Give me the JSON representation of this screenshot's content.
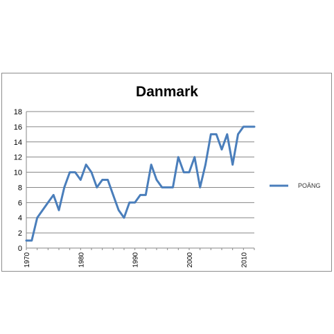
{
  "chart_data": {
    "type": "line",
    "title": "Danmark",
    "xlabel": "",
    "ylabel": "",
    "xlim": [
      1970,
      2012
    ],
    "ylim": [
      0,
      18
    ],
    "yticks": [
      0,
      2,
      4,
      6,
      8,
      10,
      12,
      14,
      16,
      18
    ],
    "xticks": [
      1970,
      1980,
      1990,
      2000,
      2010
    ],
    "grid": true,
    "legend_position": "right",
    "series": [
      {
        "name": "POÄNG",
        "color": "#4a7ebb",
        "x": [
          1970,
          1971,
          1972,
          1973,
          1974,
          1975,
          1976,
          1977,
          1978,
          1979,
          1980,
          1981,
          1982,
          1983,
          1984,
          1985,
          1986,
          1987,
          1988,
          1989,
          1990,
          1991,
          1992,
          1993,
          1994,
          1995,
          1996,
          1997,
          1998,
          1999,
          2000,
          2001,
          2002,
          2003,
          2004,
          2005,
          2006,
          2007,
          2008,
          2009,
          2010,
          2011,
          2012
        ],
        "y": [
          1,
          1,
          4,
          5,
          6,
          7,
          5,
          8,
          10,
          10,
          9,
          11,
          10,
          8,
          9,
          9,
          7,
          5,
          4,
          6,
          6,
          7,
          7,
          11,
          9,
          8,
          8,
          8,
          12,
          10,
          10,
          12,
          8,
          11,
          15,
          15,
          13,
          15,
          11,
          15,
          16,
          16,
          16
        ]
      }
    ]
  }
}
